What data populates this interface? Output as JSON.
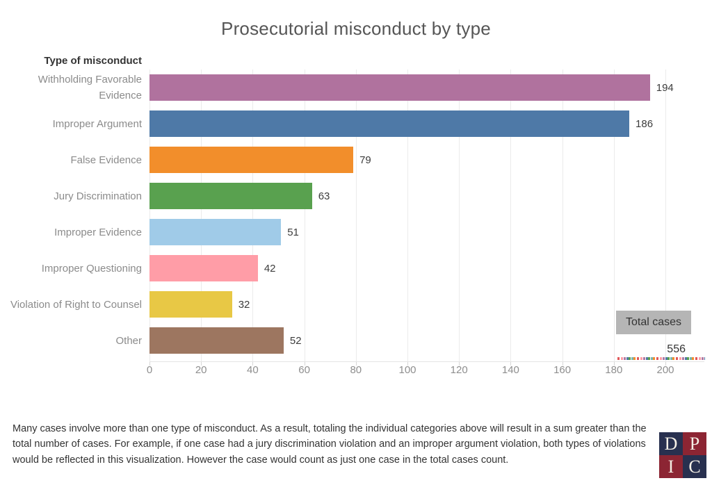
{
  "title": "Prosecutorial misconduct by type",
  "column_header": "Type of misconduct",
  "chart_data": {
    "type": "bar",
    "orientation": "horizontal",
    "title": "Prosecutorial misconduct by type",
    "xlabel": "",
    "ylabel": "Type of misconduct",
    "xlim": [
      0,
      200
    ],
    "xticks": [
      0,
      20,
      40,
      60,
      80,
      100,
      120,
      140,
      160,
      180,
      200
    ],
    "grid": true,
    "legend": "none",
    "categories": [
      "Withholding Favorable Evidence",
      "Improper Argument",
      "False Evidence",
      "Jury Discrimination",
      "Improper Evidence",
      "Improper Questioning",
      "Violation of Right to Counsel",
      "Other"
    ],
    "values": [
      194,
      186,
      79,
      63,
      51,
      42,
      32,
      52
    ],
    "colors": [
      "#b0729e",
      "#4e79a7",
      "#f28e2b",
      "#59a14f",
      "#a0cbe8",
      "#ff9da7",
      "#e8c845",
      "#9d7660"
    ],
    "annotation_total": {
      "label": "Total cases",
      "value": "556"
    }
  },
  "annotation": {
    "total_label": "Total cases",
    "total_value": "556"
  },
  "footer": "Many cases involve more than one type of misconduct. As a result, totaling the individual categories above will result in a sum greater than the total number of cases. For example, if one case had a jury discrimination violation and an improper argument violation, both types of violations would be reflected in this visualization. However the case would count as just one case in the total cases count.",
  "logo": {
    "cells": [
      {
        "letter": "D",
        "color": "#28304f"
      },
      {
        "letter": "P",
        "color": "#8c2533"
      },
      {
        "letter": "I",
        "color": "#8c2533"
      },
      {
        "letter": "C",
        "color": "#28304f"
      }
    ]
  }
}
